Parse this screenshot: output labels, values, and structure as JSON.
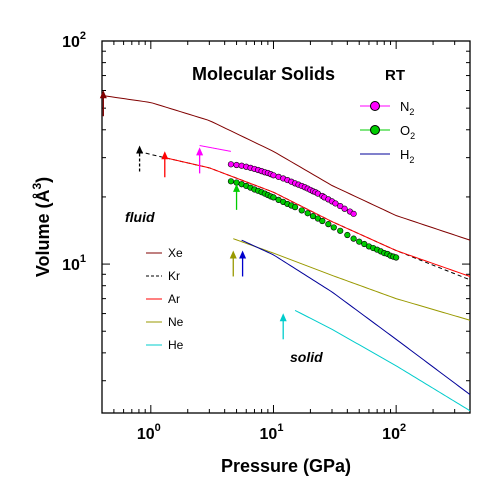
{
  "chart_data": {
    "type": "scatter",
    "title": "Molecular Solids",
    "title_tag": "RT",
    "xlabel": "Pressure  (GPa)",
    "ylabel_main": "Volume  (Å",
    "ylabel_sup": "3",
    "ylabel_close": ")",
    "x_scale": "log",
    "y_scale": "log",
    "xlim": [
      0.4,
      400
    ],
    "ylim": [
      2.15,
      100
    ],
    "x_ticks": [
      {
        "value": 1,
        "base": "10",
        "exp": "0"
      },
      {
        "value": 10,
        "base": "10",
        "exp": "1"
      },
      {
        "value": 100,
        "base": "10",
        "exp": "2"
      }
    ],
    "y_ticks": [
      {
        "value": 10,
        "base": "10",
        "exp": "1"
      },
      {
        "value": 100,
        "base": "10",
        "exp": "2"
      }
    ],
    "region_labels": [
      "fluid",
      "solid"
    ],
    "legend_right": [
      {
        "base": "N",
        "sub": "2",
        "color": "#ff00ff",
        "kind": "marker"
      },
      {
        "base": "O",
        "sub": "2",
        "color": "#00cc00",
        "kind": "marker"
      },
      {
        "base": "H",
        "sub": "2",
        "color": "#000099",
        "kind": "line"
      }
    ],
    "legend_left": [
      {
        "label": "Xe",
        "color": "#800000",
        "dash": false
      },
      {
        "label": "Kr",
        "color": "#000000",
        "dash": true
      },
      {
        "label": "Ar",
        "color": "#ff0000",
        "dash": false
      },
      {
        "label": "Ne",
        "color": "#999900",
        "dash": false
      },
      {
        "label": "He",
        "color": "#00cccc",
        "dash": false
      }
    ],
    "series": [
      {
        "name": "Xe",
        "kind": "line",
        "color": "#800000",
        "dash": false,
        "x": [
          0.4,
          1,
          3,
          10,
          30,
          100,
          400
        ],
        "y": [
          57,
          53,
          44,
          32,
          22.5,
          16.5,
          12.8
        ]
      },
      {
        "name": "Kr",
        "kind": "line",
        "color": "#000000",
        "dash": true,
        "x": [
          0.8,
          1,
          3,
          10,
          30,
          100,
          400
        ],
        "y": [
          32,
          31,
          27,
          21,
          15.5,
          11.5,
          8.5
        ]
      },
      {
        "name": "Ar",
        "kind": "line",
        "color": "#ff0000",
        "dash": false,
        "x": [
          1.3,
          3,
          10,
          30,
          100,
          400
        ],
        "y": [
          30,
          27,
          21,
          15.5,
          11.5,
          8.8
        ]
      },
      {
        "name": "Ne",
        "kind": "line",
        "color": "#999900",
        "dash": false,
        "x": [
          4.7,
          10,
          30,
          100,
          400
        ],
        "y": [
          13,
          11.2,
          8.9,
          7,
          5.6
        ]
      },
      {
        "name": "He",
        "kind": "line",
        "color": "#00cccc",
        "dash": false,
        "x": [
          15,
          30,
          100,
          400
        ],
        "y": [
          6.2,
          5.1,
          3.5,
          2.2
        ]
      },
      {
        "name": "H2",
        "kind": "line",
        "color": "#000099",
        "dash": false,
        "x": [
          5.5,
          10,
          30,
          100,
          400
        ],
        "y": [
          12.8,
          11,
          7.5,
          4.6,
          2.6
        ]
      },
      {
        "name": "N2 fluid",
        "kind": "line",
        "color": "#ff00ff",
        "dash": false,
        "x": [
          2.5,
          4.5
        ],
        "y": [
          34,
          32
        ]
      },
      {
        "name": "N2",
        "kind": "marker",
        "color": "#ff00ff",
        "x": [
          4.5,
          5.0,
          5.5,
          6.0,
          6.5,
          7.0,
          7.5,
          8.0,
          8.5,
          9.0,
          9.5,
          10,
          11,
          12,
          13,
          14,
          15,
          16,
          17,
          18,
          19,
          20,
          21,
          22,
          23,
          25,
          26,
          28,
          30,
          32,
          35,
          38,
          42,
          45
        ],
        "y": [
          28.0,
          27.8,
          27.6,
          27.3,
          27.0,
          26.7,
          26.4,
          26.1,
          25.8,
          25.6,
          25.3,
          25.0,
          24.6,
          24.2,
          23.8,
          23.4,
          23.0,
          22.7,
          22.4,
          22.1,
          21.8,
          21.5,
          21.2,
          21.0,
          20.7,
          20.2,
          19.9,
          19.5,
          19.1,
          18.7,
          18.2,
          17.7,
          17.2,
          16.8
        ]
      },
      {
        "name": "O2",
        "kind": "marker",
        "color": "#00cc00",
        "x": [
          4.5,
          5.0,
          5.5,
          6.0,
          6.5,
          7.0,
          7.5,
          8.0,
          8.5,
          9.0,
          9.5,
          10,
          11,
          12,
          13,
          14,
          15,
          17,
          19,
          21,
          23,
          25,
          28,
          31,
          35,
          40,
          45,
          50,
          55,
          60,
          65,
          70,
          75,
          80,
          85,
          90,
          95,
          100
        ],
        "y": [
          23.5,
          23.2,
          22.8,
          22.4,
          22.0,
          21.6,
          21.3,
          21.0,
          20.7,
          20.4,
          20.1,
          19.9,
          19.4,
          19.0,
          18.6,
          18.3,
          18.0,
          17.4,
          16.9,
          16.4,
          16.0,
          15.6,
          15.1,
          14.6,
          14.1,
          13.5,
          13.0,
          12.6,
          12.3,
          12.0,
          11.8,
          11.6,
          11.4,
          11.2,
          11.1,
          10.9,
          10.8,
          10.7
        ]
      }
    ],
    "arrows": [
      {
        "name": "Xe",
        "x": 0.41,
        "y": 46,
        "color": "#800000",
        "dash": false
      },
      {
        "name": "Kr",
        "x": 0.81,
        "y": 26,
        "color": "#000000",
        "dash": true
      },
      {
        "name": "Ar",
        "x": 1.3,
        "y": 24.5,
        "color": "#ff0000",
        "dash": false
      },
      {
        "name": "N2",
        "x": 2.5,
        "y": 25.5,
        "color": "#ff00ff",
        "dash": false
      },
      {
        "name": "O2",
        "x": 5.0,
        "y": 17.5,
        "color": "#00cc00",
        "dash": false
      },
      {
        "name": "Ne",
        "x": 4.7,
        "y": 8.8,
        "color": "#999900",
        "dash": false
      },
      {
        "name": "H2",
        "x": 5.6,
        "y": 8.8,
        "color": "#0000cc",
        "dash": false
      },
      {
        "name": "He",
        "x": 12,
        "y": 4.6,
        "color": "#00cccc",
        "dash": false
      }
    ]
  }
}
